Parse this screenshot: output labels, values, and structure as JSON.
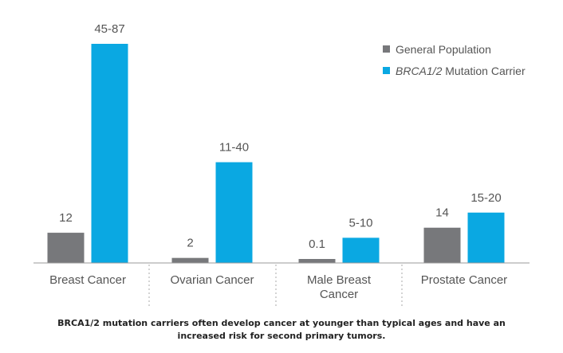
{
  "colors": {
    "general": "#77787b",
    "carrier": "#0aa8e2",
    "axis": "#999999",
    "text": "#555555"
  },
  "legend": {
    "general": "General Population",
    "carrier_italic": "BRCA1/2",
    "carrier_rest": " Mutation Carrier"
  },
  "caption": {
    "line1": "BRCA1/2 mutation carriers often develop cancer at younger than typical ages and have an",
    "line2": "increased risk for second primary tumors."
  },
  "chart_data": {
    "type": "bar",
    "categories": [
      "Breast Cancer",
      "Ovarian Cancer",
      "Male Breast Cancer",
      "Prostate Cancer"
    ],
    "category_lines": [
      [
        "Breast Cancer"
      ],
      [
        "Ovarian Cancer"
      ],
      [
        "Male Breast",
        "Cancer"
      ],
      [
        "Prostate Cancer"
      ]
    ],
    "series": [
      {
        "name": "General Population",
        "values": [
          12,
          2,
          0.1,
          14
        ],
        "labels": [
          "12",
          "2",
          "0.1",
          "14"
        ]
      },
      {
        "name": "BRCA1/2 Mutation Carrier",
        "values": [
          87,
          40,
          10,
          20
        ],
        "labels": [
          "45-87",
          "11-40",
          "5-10",
          "15-20"
        ]
      }
    ],
    "ylim": [
      0,
      87
    ],
    "legend_position": "top-right",
    "grid": false
  }
}
